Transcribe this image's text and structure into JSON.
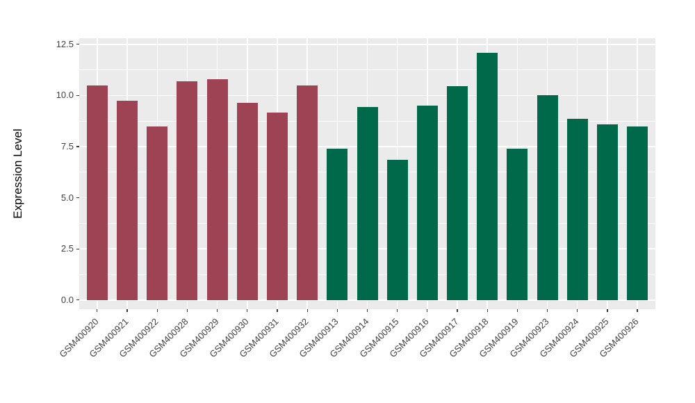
{
  "chart_data": {
    "type": "bar",
    "title": "",
    "xlabel": "",
    "ylabel": "Expression Level",
    "categories": [
      "GSM400920",
      "GSM400921",
      "GSM400922",
      "GSM400928",
      "GSM400929",
      "GSM400930",
      "GSM400931",
      "GSM400932",
      "GSM400913",
      "GSM400914",
      "GSM400915",
      "GSM400916",
      "GSM400917",
      "GSM400918",
      "GSM400919",
      "GSM400923",
      "GSM400924",
      "GSM400925",
      "GSM400926"
    ],
    "values": [
      10.5,
      9.75,
      8.5,
      10.7,
      10.8,
      9.65,
      9.15,
      10.5,
      7.4,
      9.45,
      6.85,
      9.5,
      10.45,
      12.1,
      7.4,
      10.0,
      8.85,
      8.6,
      8.5
    ],
    "groups": [
      "red",
      "red",
      "red",
      "red",
      "red",
      "red",
      "red",
      "red",
      "green",
      "green",
      "green",
      "green",
      "green",
      "green",
      "green",
      "green",
      "green",
      "green",
      "green"
    ],
    "group_colors": {
      "red": "#9E4354",
      "green": "#006949"
    },
    "yticks": [
      0.0,
      2.5,
      5.0,
      7.5,
      10.0,
      12.5
    ],
    "ytick_labels": [
      "0.0",
      "2.5",
      "5.0",
      "7.5",
      "10.0",
      "12.5"
    ],
    "minor_yticks": [
      1.25,
      3.75,
      6.25,
      8.75,
      11.25
    ],
    "ylim": [
      -0.45,
      12.8
    ],
    "grid": true,
    "legend_position": "none",
    "panel_background": "#EBEBEB",
    "grid_color": "#FFFFFF"
  }
}
